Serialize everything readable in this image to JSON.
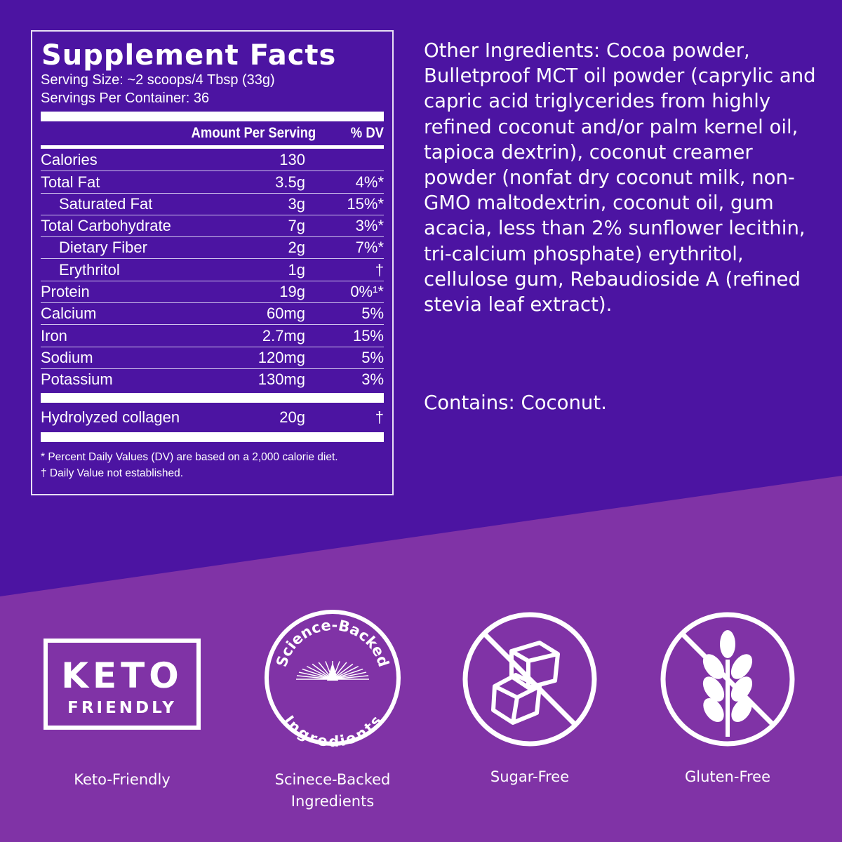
{
  "colors": {
    "top_bg": "#4c14a2",
    "bottom_bg": "#8033a6",
    "text": "#ffffff"
  },
  "facts": {
    "title": "Supplement Facts",
    "serving_size": "Serving Size: ~2 scoops/4 Tbsp (33g)",
    "servings_per_container": "Servings Per Container: 36",
    "col_amount": "Amount Per Serving",
    "col_dv": "% DV",
    "rows": [
      {
        "name": "Calories",
        "amount": "130",
        "dv": ""
      },
      {
        "name": "Total Fat",
        "amount": "3.5g",
        "dv": "4%*"
      },
      {
        "name": "Saturated Fat",
        "amount": "3g",
        "dv": "15%*"
      },
      {
        "name": "Total Carbohydrate",
        "amount": "7g",
        "dv": "3%*"
      },
      {
        "name": "Dietary Fiber",
        "amount": "2g",
        "dv": "7%*"
      },
      {
        "name": "Erythritol",
        "amount": "1g",
        "dv": "†"
      },
      {
        "name": "Protein",
        "amount": "19g",
        "dv": "0%¹*"
      },
      {
        "name": "Calcium",
        "amount": "60mg",
        "dv": "5%"
      },
      {
        "name": "Iron",
        "amount": "2.7mg",
        "dv": "15%"
      },
      {
        "name": "Sodium",
        "amount": "120mg",
        "dv": "5%"
      },
      {
        "name": "Potassium",
        "amount": "130mg",
        "dv": "3%"
      }
    ],
    "extra": {
      "name": "Hydrolyzed collagen",
      "amount": "20g",
      "dv": "†"
    },
    "footnote1": "* Percent Daily Values (DV) are based on a 2,000 calorie diet.",
    "footnote2": "† Daily Value not established."
  },
  "ingredients": "Other Ingredients: Cocoa powder, Bulletproof MCT oil powder (caprylic and capric acid triglycerides from highly refined coconut and/or palm kernel oil, tapioca dextrin), coconut creamer powder (nonfat dry coconut milk, non-GMO maltodextrin, coconut oil, gum acacia, less than 2% sunflower lecithin, tri-calcium phosphate) erythritol, cellulose gum, Rebaudioside A (refined stevia leaf extract).",
  "contains": "Contains: Coconut.",
  "badges": [
    {
      "icon": "keto-badge-icon",
      "logo_text": "KETO",
      "logo_sub": "FRIENDLY",
      "label": "Keto-Friendly"
    },
    {
      "icon": "science-backed-seal-icon",
      "logo_text": "Science-Backed",
      "logo_sub": "Ingredients",
      "label": "Scinece-Backed Ingredients"
    },
    {
      "icon": "sugar-free-icon",
      "label": "Sugar-Free"
    },
    {
      "icon": "gluten-free-icon",
      "label": "Gluten-Free"
    }
  ]
}
